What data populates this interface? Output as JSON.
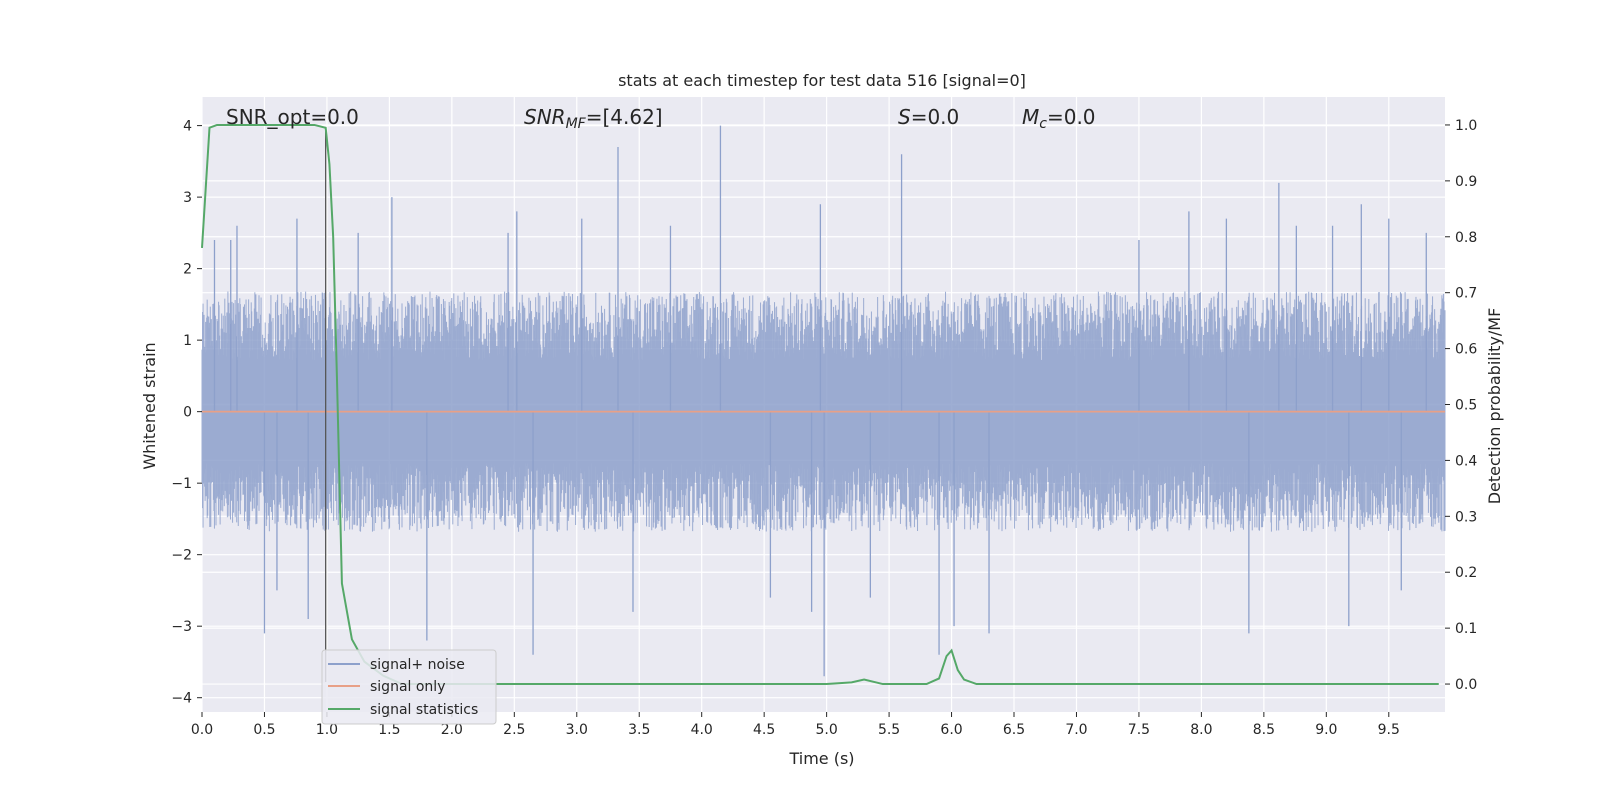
{
  "chart_data": {
    "type": "line",
    "title": "stats at each timestep for test data 516 [signal=0]",
    "xlabel": "Time (s)",
    "ylabel": "Whitened strain",
    "ylabel_right": "Detection probability/MF",
    "xlim": [
      0.0,
      9.95
    ],
    "ylim": [
      -4.2,
      4.4
    ],
    "ylim_right": [
      -0.05,
      1.05
    ],
    "x_ticks": [
      0.0,
      0.5,
      1.0,
      1.5,
      2.0,
      2.5,
      3.0,
      3.5,
      4.0,
      4.5,
      5.0,
      5.5,
      6.0,
      6.5,
      7.0,
      7.5,
      8.0,
      8.5,
      9.0,
      9.5
    ],
    "x_tick_labels": [
      "0.0",
      "0.5",
      "1.0",
      "1.5",
      "2.0",
      "2.5",
      "3.0",
      "3.5",
      "4.0",
      "4.5",
      "5.0",
      "5.5",
      "6.0",
      "6.5",
      "7.0",
      "7.5",
      "8.0",
      "8.5",
      "9.0",
      "9.5"
    ],
    "y_ticks": [
      -4,
      -3,
      -2,
      -1,
      0,
      1,
      2,
      3,
      4
    ],
    "y_tick_labels": [
      "−4",
      "−3",
      "−2",
      "−1",
      "0",
      "1",
      "2",
      "3",
      "4"
    ],
    "y_ticks_right": [
      0.0,
      0.1,
      0.2,
      0.3,
      0.4,
      0.5,
      0.6,
      0.7,
      0.8,
      0.9,
      1.0
    ],
    "y_tick_labels_right": [
      "0.0",
      "0.1",
      "0.2",
      "0.3",
      "0.4",
      "0.5",
      "0.6",
      "0.7",
      "0.8",
      "0.9",
      "1.0"
    ],
    "grid": true,
    "legend_position": "bottom-left",
    "annotations": {
      "snr_opt": "SNR_opt=0.0",
      "snr_mf_prefix": "SNR",
      "snr_mf_sub": "MF",
      "snr_mf_value": "=[4.62]",
      "s_prefix": "S",
      "s_value": "=0.0",
      "mc_prefix": "M",
      "mc_sub": "c",
      "mc_value": "=0.0"
    },
    "vertical_marker_x": 0.99,
    "series": [
      {
        "name": "signal+ noise",
        "axis": "left",
        "color": "#8da0cb",
        "kind": "noise",
        "description": "whitened strain noise, approx +/-1.6 with spikes",
        "envelope": [
          -1.6,
          1.6
        ],
        "spikes": [
          {
            "x": 0.1,
            "y": 2.4
          },
          {
            "x": 0.23,
            "y": 2.4
          },
          {
            "x": 0.28,
            "y": 2.6
          },
          {
            "x": 0.5,
            "y": -3.1
          },
          {
            "x": 0.6,
            "y": -2.5
          },
          {
            "x": 0.76,
            "y": 2.7
          },
          {
            "x": 0.85,
            "y": -2.9
          },
          {
            "x": 1.25,
            "y": 2.5
          },
          {
            "x": 1.52,
            "y": 3.0
          },
          {
            "x": 1.8,
            "y": -3.2
          },
          {
            "x": 2.45,
            "y": 2.5
          },
          {
            "x": 2.52,
            "y": 2.8
          },
          {
            "x": 2.65,
            "y": -3.4
          },
          {
            "x": 3.04,
            "y": 2.7
          },
          {
            "x": 3.33,
            "y": 3.7
          },
          {
            "x": 3.45,
            "y": -2.8
          },
          {
            "x": 3.75,
            "y": 2.6
          },
          {
            "x": 4.15,
            "y": 4.0
          },
          {
            "x": 4.55,
            "y": -2.6
          },
          {
            "x": 4.88,
            "y": -2.8
          },
          {
            "x": 4.95,
            "y": 2.9
          },
          {
            "x": 4.98,
            "y": -3.7
          },
          {
            "x": 5.35,
            "y": -2.6
          },
          {
            "x": 5.6,
            "y": 3.6
          },
          {
            "x": 5.9,
            "y": -3.4
          },
          {
            "x": 6.02,
            "y": -3.0
          },
          {
            "x": 6.3,
            "y": -3.1
          },
          {
            "x": 7.5,
            "y": 2.4
          },
          {
            "x": 7.9,
            "y": 2.8
          },
          {
            "x": 8.2,
            "y": 2.7
          },
          {
            "x": 8.38,
            "y": -3.1
          },
          {
            "x": 8.62,
            "y": 3.2
          },
          {
            "x": 8.76,
            "y": 2.6
          },
          {
            "x": 9.05,
            "y": 2.6
          },
          {
            "x": 9.18,
            "y": -3.0
          },
          {
            "x": 9.28,
            "y": 2.9
          },
          {
            "x": 9.5,
            "y": 2.7
          },
          {
            "x": 9.6,
            "y": -2.5
          },
          {
            "x": 9.8,
            "y": 2.5
          }
        ]
      },
      {
        "name": "signal only",
        "axis": "left",
        "color": "#e8a087",
        "x": [
          0.0,
          9.95
        ],
        "y": [
          0.0,
          0.0
        ]
      },
      {
        "name": "signal statistics",
        "axis": "right",
        "color": "#55a868",
        "x": [
          0.0,
          0.06,
          0.12,
          0.2,
          0.3,
          0.5,
          0.7,
          0.9,
          0.99,
          1.02,
          1.05,
          1.08,
          1.12,
          1.2,
          1.3,
          1.45,
          1.6,
          2.0,
          3.0,
          4.0,
          5.0,
          5.2,
          5.3,
          5.45,
          5.6,
          5.8,
          5.9,
          5.96,
          6.0,
          6.05,
          6.1,
          6.2,
          7.0,
          8.0,
          9.0,
          9.9
        ],
        "y": [
          0.78,
          0.995,
          1.0,
          1.0,
          1.0,
          1.0,
          1.0,
          1.0,
          0.995,
          0.93,
          0.8,
          0.55,
          0.18,
          0.08,
          0.04,
          0.015,
          0.0,
          0.0,
          0.0,
          0.0,
          0.0,
          0.003,
          0.008,
          0.0,
          0.0,
          0.0,
          0.01,
          0.05,
          0.06,
          0.025,
          0.008,
          0.0,
          0.0,
          0.0,
          0.0,
          0.0
        ]
      }
    ]
  }
}
